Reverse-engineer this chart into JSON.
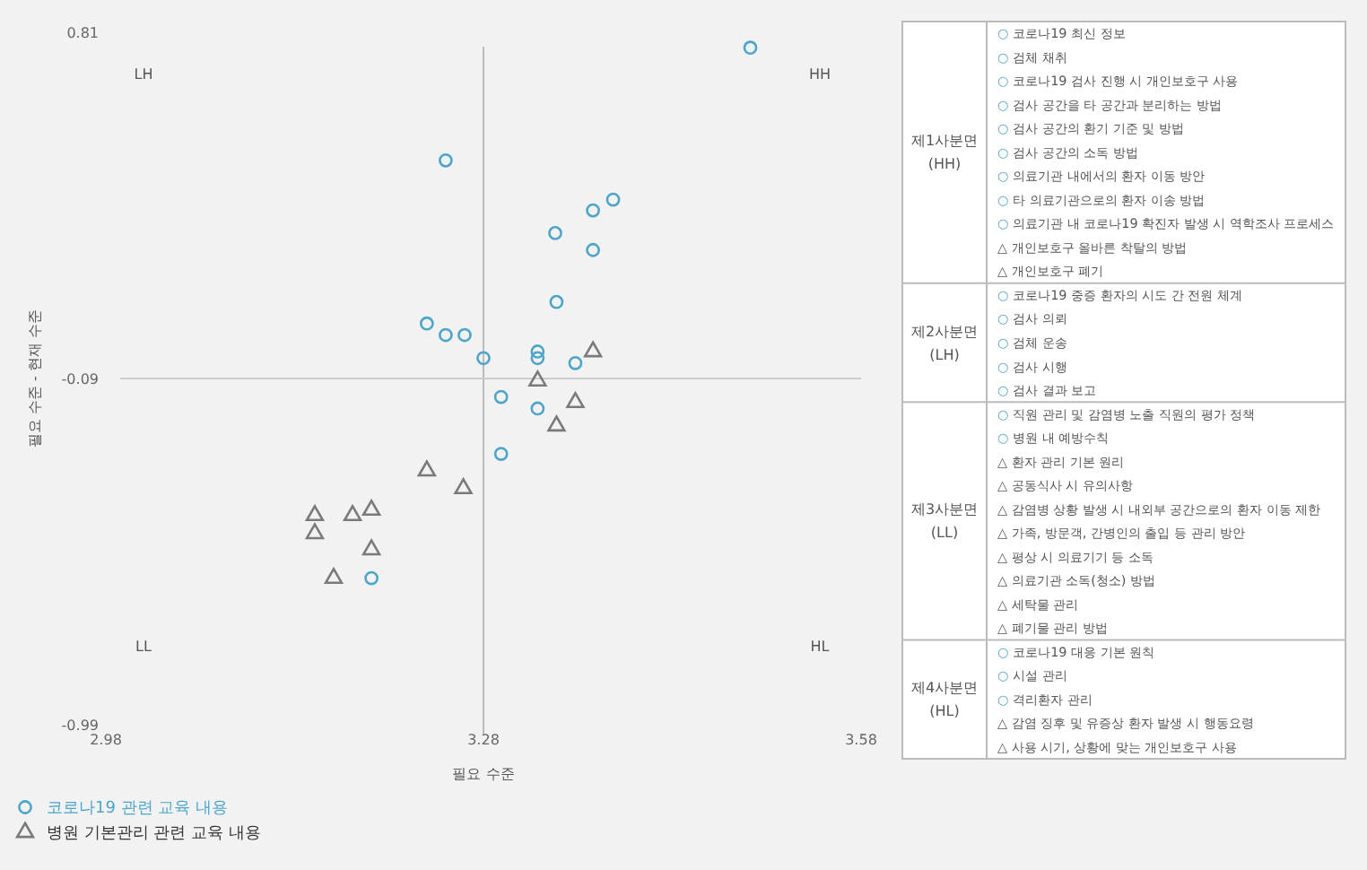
{
  "chart_data": [
    {
      "type": "scatter",
      "xlabel": "필요 수준",
      "ylabel": "필요 수준 - 현재 수준",
      "xlim": [
        2.98,
        3.58
      ],
      "ylim": [
        -0.99,
        0.81
      ],
      "xticks": [
        2.98,
        3.28,
        3.58
      ],
      "yticks": [
        -0.99,
        -0.09,
        0.81
      ],
      "grid": false,
      "legend": "bottom left",
      "ref_lines": [
        {
          "axis": "x",
          "value": 3.28,
          "color": "#bbbbbb"
        },
        {
          "axis": "y",
          "value": -0.09,
          "color": "#cccccc"
        }
      ],
      "annotations": [
        "LH",
        "HH",
        "LL",
        "HL"
      ],
      "series": [
        {
          "name": "코로나19 관련 교육 내용",
          "color": "#4ea5cb",
          "marker": "circle",
          "x": [
            3.492,
            3.383,
            3.367,
            3.337,
            3.367,
            3.338,
            3.323,
            3.323,
            3.353,
            3.28,
            3.294,
            3.323,
            3.294,
            3.25,
            3.235,
            3.25,
            3.265,
            3.191
          ],
          "values": [
            0.77,
            0.375,
            0.347,
            0.288,
            0.244,
            0.109,
            -0.02,
            -0.037,
            -0.05,
            -0.037,
            -0.138,
            -0.168,
            -0.286,
            0.477,
            0.053,
            0.023,
            0.023,
            -0.609
          ]
        },
        {
          "name": "병원 기본관리 관련 교육 내용",
          "color": "#7a7a7a",
          "marker": "triangle",
          "x": [
            3.367,
            3.323,
            3.353,
            3.338,
            3.264,
            3.235,
            3.146,
            3.176,
            3.191,
            3.146,
            3.191,
            3.161
          ],
          "values": [
            -0.02,
            -0.096,
            -0.152,
            -0.213,
            -0.376,
            -0.33,
            -0.446,
            -0.446,
            -0.432,
            -0.493,
            -0.535,
            -0.609
          ]
        }
      ]
    },
    {
      "type": "other",
      "cell_labels": [
        [
          "제1사분면 (HH)",
          "○ 코로나19 최신 정보"
        ],
        [
          null,
          "○ 검체 채취"
        ],
        [
          null,
          "○ 코로나19 검사 진행 시 개인보호구 사용"
        ],
        [
          null,
          "○ 검사 공간을 타 공간과 분리하는 방법"
        ],
        [
          null,
          "○ 검사 공간의 환기 기준 및 방법"
        ],
        [
          null,
          "○ 검사 공간의 소독 방법"
        ],
        [
          null,
          "○ 의료기관 내에서의 환자 이동 방안"
        ],
        [
          null,
          "○ 타 의료기관으로의 환자 이송 방법"
        ],
        [
          null,
          "○ 의료기관 내 코로나19 확진자 발생 시 역학조사 프로세스"
        ],
        [
          null,
          "△ 개인보호구 올바른 착탈의 방법"
        ],
        [
          null,
          "△ 개인보호구 폐기"
        ],
        [
          "제2사분면 (LH)",
          "○ 코로나19 중증 환자의 시도 간 전원 체계"
        ],
        [
          null,
          "○ 검사 의뢰"
        ],
        [
          null,
          "○ 검체 운송"
        ],
        [
          null,
          "○ 검사 시행"
        ],
        [
          null,
          "○ 검사 결과 보고"
        ],
        [
          "제3사분면 (LL)",
          "○ 직원 관리 및 감염병 노출 직원의 평가 정책"
        ],
        [
          null,
          "○ 병원 내 예방수칙"
        ],
        [
          null,
          "△ 환자 관리 기본 원리"
        ],
        [
          null,
          "△ 공동식사 시 유의사항"
        ],
        [
          null,
          "△ 감염병 상황 발생 시 내외부 공간으로의 환자 이동 제한"
        ],
        [
          null,
          "△ 가족, 방문객, 간병인의 출입 등 관리 방안"
        ],
        [
          null,
          "△ 평상 시 의료기기 등 소독"
        ],
        [
          null,
          "△ 의료기관 소독(청소) 방법"
        ],
        [
          null,
          "△ 세탁물 관리"
        ],
        [
          null,
          "△ 폐기물 관리 방법"
        ],
        [
          "제4사분면 (HL)",
          "○ 코로나19 대응 기본 원칙"
        ],
        [
          null,
          "○ 시설 관리"
        ],
        [
          null,
          "○ 격리환자 관리"
        ],
        [
          null,
          "△ 감염 징후 및 유증상 환자 발생 시 행동요령"
        ],
        [
          null,
          "△ 사용 시기, 상황에 맞는 개인보호구 사용"
        ]
      ]
    }
  ]
}
